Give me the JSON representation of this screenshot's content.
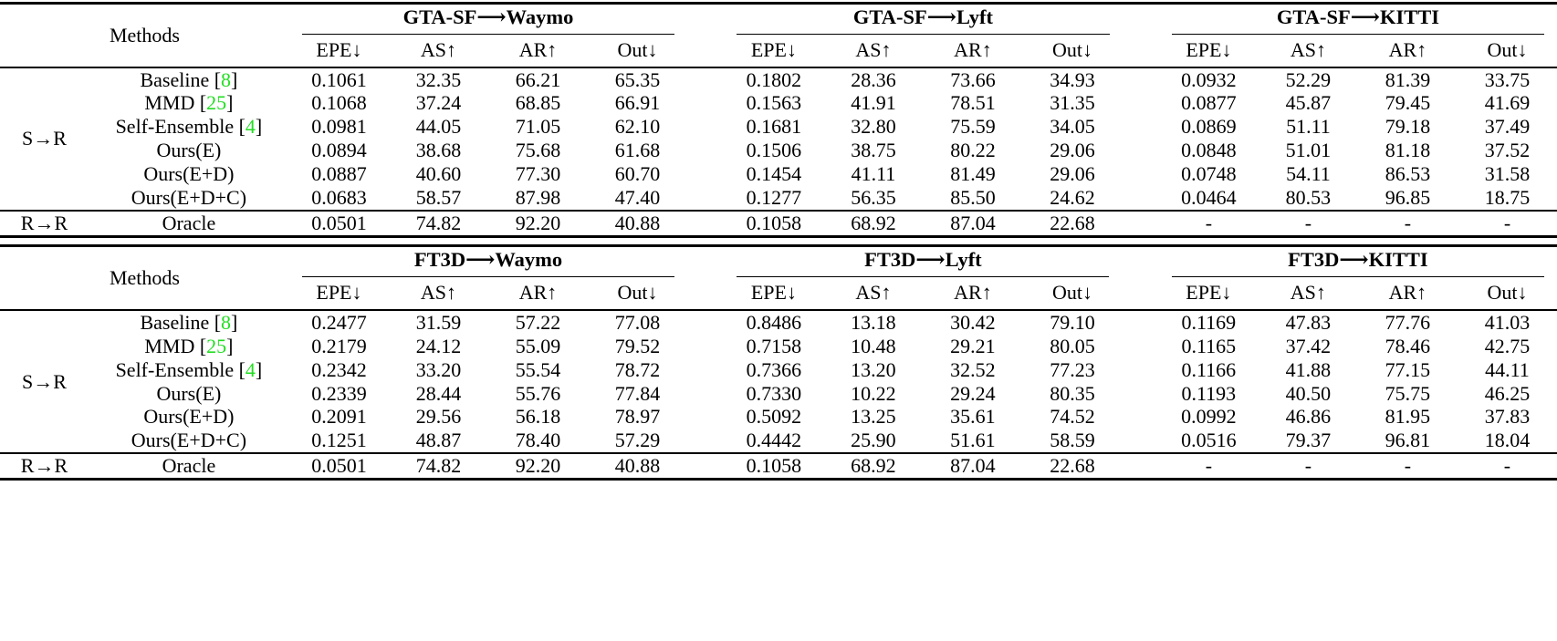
{
  "citation_color": "#22DD22",
  "methods_header": "Methods",
  "metric_headers": [
    "EPE↓",
    "AS↑",
    "AR↑",
    "Out↓"
  ],
  "tables": [
    {
      "name": "gta-sf-results",
      "groups": [
        "GTA-SF⟶Waymo",
        "GTA-SF⟶Lyft",
        "GTA-SF⟶KITTI"
      ],
      "row_groups": [
        {
          "label": "S→R",
          "rows": [
            {
              "method": "Baseline",
              "ref": "8",
              "bold": false,
              "values": [
                "0.1061",
                "32.35",
                "66.21",
                "65.35",
                "0.1802",
                "28.36",
                "73.66",
                "34.93",
                "0.0932",
                "52.29",
                "81.39",
                "33.75"
              ]
            },
            {
              "method": "MMD",
              "ref": "25",
              "bold": false,
              "values": [
                "0.1068",
                "37.24",
                "68.85",
                "66.91",
                "0.1563",
                "41.91",
                "78.51",
                "31.35",
                "0.0877",
                "45.87",
                "79.45",
                "41.69"
              ]
            },
            {
              "method": "Self-Ensemble",
              "ref": "4",
              "bold": false,
              "values": [
                "0.0981",
                "44.05",
                "71.05",
                "62.10",
                "0.1681",
                "32.80",
                "75.59",
                "34.05",
                "0.0869",
                "51.11",
                "79.18",
                "37.49"
              ]
            },
            {
              "method": "Ours(E)",
              "ref": null,
              "bold": false,
              "values": [
                "0.0894",
                "38.68",
                "75.68",
                "61.68",
                "0.1506",
                "38.75",
                "80.22",
                "29.06",
                "0.0848",
                "51.01",
                "81.18",
                "37.52"
              ]
            },
            {
              "method": "Ours(E+D)",
              "ref": null,
              "bold": false,
              "values": [
                "0.0887",
                "40.60",
                "77.30",
                "60.70",
                "0.1454",
                "41.11",
                "81.49",
                "29.06",
                "0.0748",
                "54.11",
                "86.53",
                "31.58"
              ]
            },
            {
              "method": "Ours(E+D+C)",
              "ref": null,
              "bold": true,
              "values": [
                "0.0683",
                "58.57",
                "87.98",
                "47.40",
                "0.1277",
                "56.35",
                "85.50",
                "24.62",
                "0.0464",
                "80.53",
                "96.85",
                "18.75"
              ]
            }
          ]
        },
        {
          "label": "R→R",
          "rows": [
            {
              "method": "Oracle",
              "ref": null,
              "bold": false,
              "values": [
                "0.0501",
                "74.82",
                "92.20",
                "40.88",
                "0.1058",
                "68.92",
                "87.04",
                "22.68",
                "-",
                "-",
                "-",
                "-"
              ]
            }
          ]
        }
      ]
    },
    {
      "name": "ft3d-results",
      "groups": [
        "FT3D⟶Waymo",
        "FT3D⟶Lyft",
        "FT3D⟶KITTI"
      ],
      "row_groups": [
        {
          "label": "S→R",
          "rows": [
            {
              "method": "Baseline",
              "ref": "8",
              "bold": false,
              "values": [
                "0.2477",
                "31.59",
                "57.22",
                "77.08",
                "0.8486",
                "13.18",
                "30.42",
                "79.10",
                "0.1169",
                "47.83",
                "77.76",
                "41.03"
              ]
            },
            {
              "method": "MMD",
              "ref": "25",
              "bold": false,
              "values": [
                "0.2179",
                "24.12",
                "55.09",
                "79.52",
                "0.7158",
                "10.48",
                "29.21",
                "80.05",
                "0.1165",
                "37.42",
                "78.46",
                "42.75"
              ]
            },
            {
              "method": "Self-Ensemble",
              "ref": "4",
              "bold": false,
              "values": [
                "0.2342",
                "33.20",
                "55.54",
                "78.72",
                "0.7366",
                "13.20",
                "32.52",
                "77.23",
                "0.1166",
                "41.88",
                "77.15",
                "44.11"
              ]
            },
            {
              "method": "Ours(E)",
              "ref": null,
              "bold": false,
              "values": [
                "0.2339",
                "28.44",
                "55.76",
                "77.84",
                "0.7330",
                "10.22",
                "29.24",
                "80.35",
                "0.1193",
                "40.50",
                "75.75",
                "46.25"
              ]
            },
            {
              "method": "Ours(E+D)",
              "ref": null,
              "bold": false,
              "values": [
                "0.2091",
                "29.56",
                "56.18",
                "78.97",
                "0.5092",
                "13.25",
                "35.61",
                "74.52",
                "0.0992",
                "46.86",
                "81.95",
                "37.83"
              ]
            },
            {
              "method": "Ours(E+D+C)",
              "ref": null,
              "bold": true,
              "values": [
                "0.1251",
                "48.87",
                "78.40",
                "57.29",
                "0.4442",
                "25.90",
                "51.61",
                "58.59",
                "0.0516",
                "79.37",
                "96.81",
                "18.04"
              ]
            }
          ]
        },
        {
          "label": "R→R",
          "rows": [
            {
              "method": "Oracle",
              "ref": null,
              "bold": false,
              "values": [
                "0.0501",
                "74.82",
                "92.20",
                "40.88",
                "0.1058",
                "68.92",
                "87.04",
                "22.68",
                "-",
                "-",
                "-",
                "-"
              ]
            }
          ]
        }
      ]
    }
  ]
}
